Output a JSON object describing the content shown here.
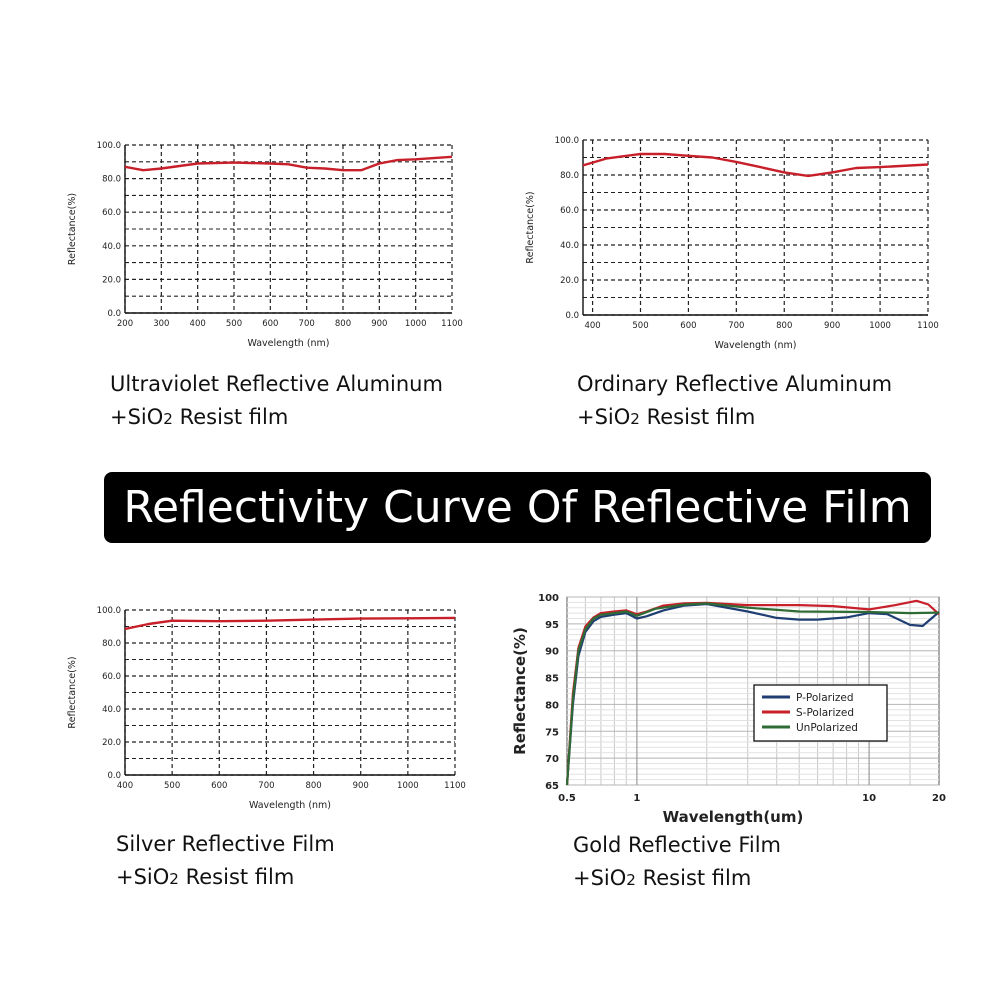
{
  "banner_title": "Reflectivity Curve Of Reflective Film",
  "captions": [
    {
      "line1": "Ultraviolet Reflective Aluminum",
      "line2_prefix": "+SiO",
      "line2_sub": "2",
      "line2_suffix": " Resist film"
    },
    {
      "line1": "Ordinary Reflective Aluminum",
      "line2_prefix": "+SiO",
      "line2_sub": "2",
      "line2_suffix": " Resist film"
    },
    {
      "line1": "Silver Reflective Film",
      "line2_prefix": "+SiO",
      "line2_sub": "2",
      "line2_suffix": " Resist film"
    },
    {
      "line1": "Gold Reflective Film",
      "line2_prefix": "+SiO",
      "line2_sub": "2",
      "line2_suffix": " Resist film"
    }
  ],
  "colors": {
    "red": "#c8202a",
    "blue": "#1f3f73",
    "green": "#2f6b34",
    "grid": "#222222"
  },
  "chart_data": [
    {
      "type": "line",
      "xlabel": "Wavelength (nm)",
      "ylabel": "Reflectance(%)",
      "xlim": [
        200,
        1100
      ],
      "ylim": [
        0,
        100
      ],
      "xticks": [
        200,
        300,
        400,
        500,
        600,
        700,
        800,
        900,
        1000,
        1100
      ],
      "yticks": [
        0,
        20,
        40,
        60,
        80,
        100
      ],
      "ytick_labels": [
        "0.0",
        "20.0",
        "40.0",
        "60.0",
        "80.0",
        "100.0"
      ],
      "grid": true,
      "series": [
        {
          "color": "#c8202a",
          "x": [
            200,
            250,
            300,
            400,
            500,
            600,
            650,
            700,
            750,
            800,
            850,
            900,
            950,
            1000,
            1100
          ],
          "y": [
            87,
            85,
            86,
            89,
            89.5,
            89,
            88.5,
            86.5,
            86,
            85,
            85,
            89,
            91,
            91.5,
            93
          ]
        }
      ]
    },
    {
      "type": "line",
      "xlabel": "Wavelength (nm)",
      "ylabel": "Reflectance(%)",
      "xlim": [
        380,
        1100
      ],
      "ylim": [
        0,
        100
      ],
      "xticks": [
        400,
        500,
        600,
        700,
        800,
        900,
        1000,
        1100
      ],
      "yticks": [
        0,
        20,
        40,
        60,
        80,
        100
      ],
      "ytick_labels": [
        "0.0",
        "20.0",
        "40.0",
        "60.0",
        "80.0",
        "100.0"
      ],
      "grid": true,
      "series": [
        {
          "color": "#c8202a",
          "x": [
            380,
            430,
            500,
            550,
            600,
            650,
            700,
            750,
            800,
            850,
            900,
            950,
            1000,
            1100
          ],
          "y": [
            85.5,
            89.5,
            92,
            92,
            91,
            90,
            87.5,
            84.5,
            81.5,
            79.5,
            81.5,
            84,
            84.5,
            86
          ]
        }
      ]
    },
    {
      "type": "line",
      "xlabel": "Wavelength (nm)",
      "ylabel": "Reflectance(%)",
      "xlim": [
        400,
        1100
      ],
      "ylim": [
        0,
        100
      ],
      "xticks": [
        400,
        500,
        600,
        700,
        800,
        900,
        1000,
        1100
      ],
      "yticks": [
        0,
        20,
        40,
        60,
        80,
        100
      ],
      "ytick_labels": [
        "0.0",
        "20.0",
        "40.0",
        "60.0",
        "80.0",
        "100.0"
      ],
      "grid": true,
      "series": [
        {
          "color": "#c8202a",
          "x": [
            400,
            450,
            500,
            600,
            700,
            800,
            900,
            1000,
            1100
          ],
          "y": [
            88.5,
            91.5,
            93.5,
            93.2,
            93.5,
            94.2,
            94.8,
            95,
            95.2
          ]
        }
      ]
    },
    {
      "type": "line",
      "xlabel": "Wavelength(um)",
      "ylabel": "Reflectance(%)",
      "xscale": "log",
      "xlim": [
        0.5,
        20
      ],
      "ylim": [
        65,
        100
      ],
      "xticks": [
        0.5,
        1,
        10,
        20
      ],
      "yticks": [
        65,
        70,
        75,
        80,
        85,
        90,
        95,
        100
      ],
      "grid": true,
      "legend_position": "middle-right",
      "series": [
        {
          "name": "P-Polarized",
          "color": "#1f3f73",
          "x": [
            0.5,
            0.53,
            0.56,
            0.6,
            0.65,
            0.7,
            0.8,
            0.9,
            1.0,
            1.1,
            1.3,
            1.6,
            2,
            3,
            4,
            5,
            6,
            8,
            10,
            12,
            15,
            17,
            20
          ],
          "y": [
            65,
            80,
            89,
            93.5,
            95.5,
            96.3,
            96.7,
            97.0,
            96.0,
            96.4,
            97.5,
            98.4,
            98.7,
            97.3,
            96.1,
            95.8,
            95.8,
            96.2,
            97.0,
            96.8,
            94.8,
            94.6,
            97.2
          ]
        },
        {
          "name": "S-Polarized",
          "color": "#c8202a",
          "x": [
            0.5,
            0.53,
            0.56,
            0.6,
            0.65,
            0.7,
            0.8,
            0.9,
            1.0,
            1.1,
            1.3,
            1.6,
            2,
            3,
            5,
            7,
            10,
            13,
            16,
            18,
            20
          ],
          "y": [
            65,
            82,
            90.5,
            94.5,
            96.2,
            97,
            97.3,
            97.5,
            96.8,
            97.3,
            98.4,
            98.8,
            98.9,
            98.5,
            98.5,
            98.3,
            97.7,
            98.5,
            99.3,
            98.6,
            96.8
          ]
        },
        {
          "name": "UnPolarized",
          "color": "#2f6b34",
          "x": [
            0.5,
            0.53,
            0.56,
            0.6,
            0.65,
            0.7,
            0.8,
            0.9,
            1.0,
            1.2,
            1.6,
            2,
            3,
            5,
            10,
            15,
            20
          ],
          "y": [
            65,
            81,
            90,
            94,
            96,
            96.7,
            97,
            97.3,
            96.5,
            97.8,
            98.6,
            98.8,
            98,
            97.3,
            97.2,
            97,
            97.1
          ]
        }
      ]
    }
  ]
}
